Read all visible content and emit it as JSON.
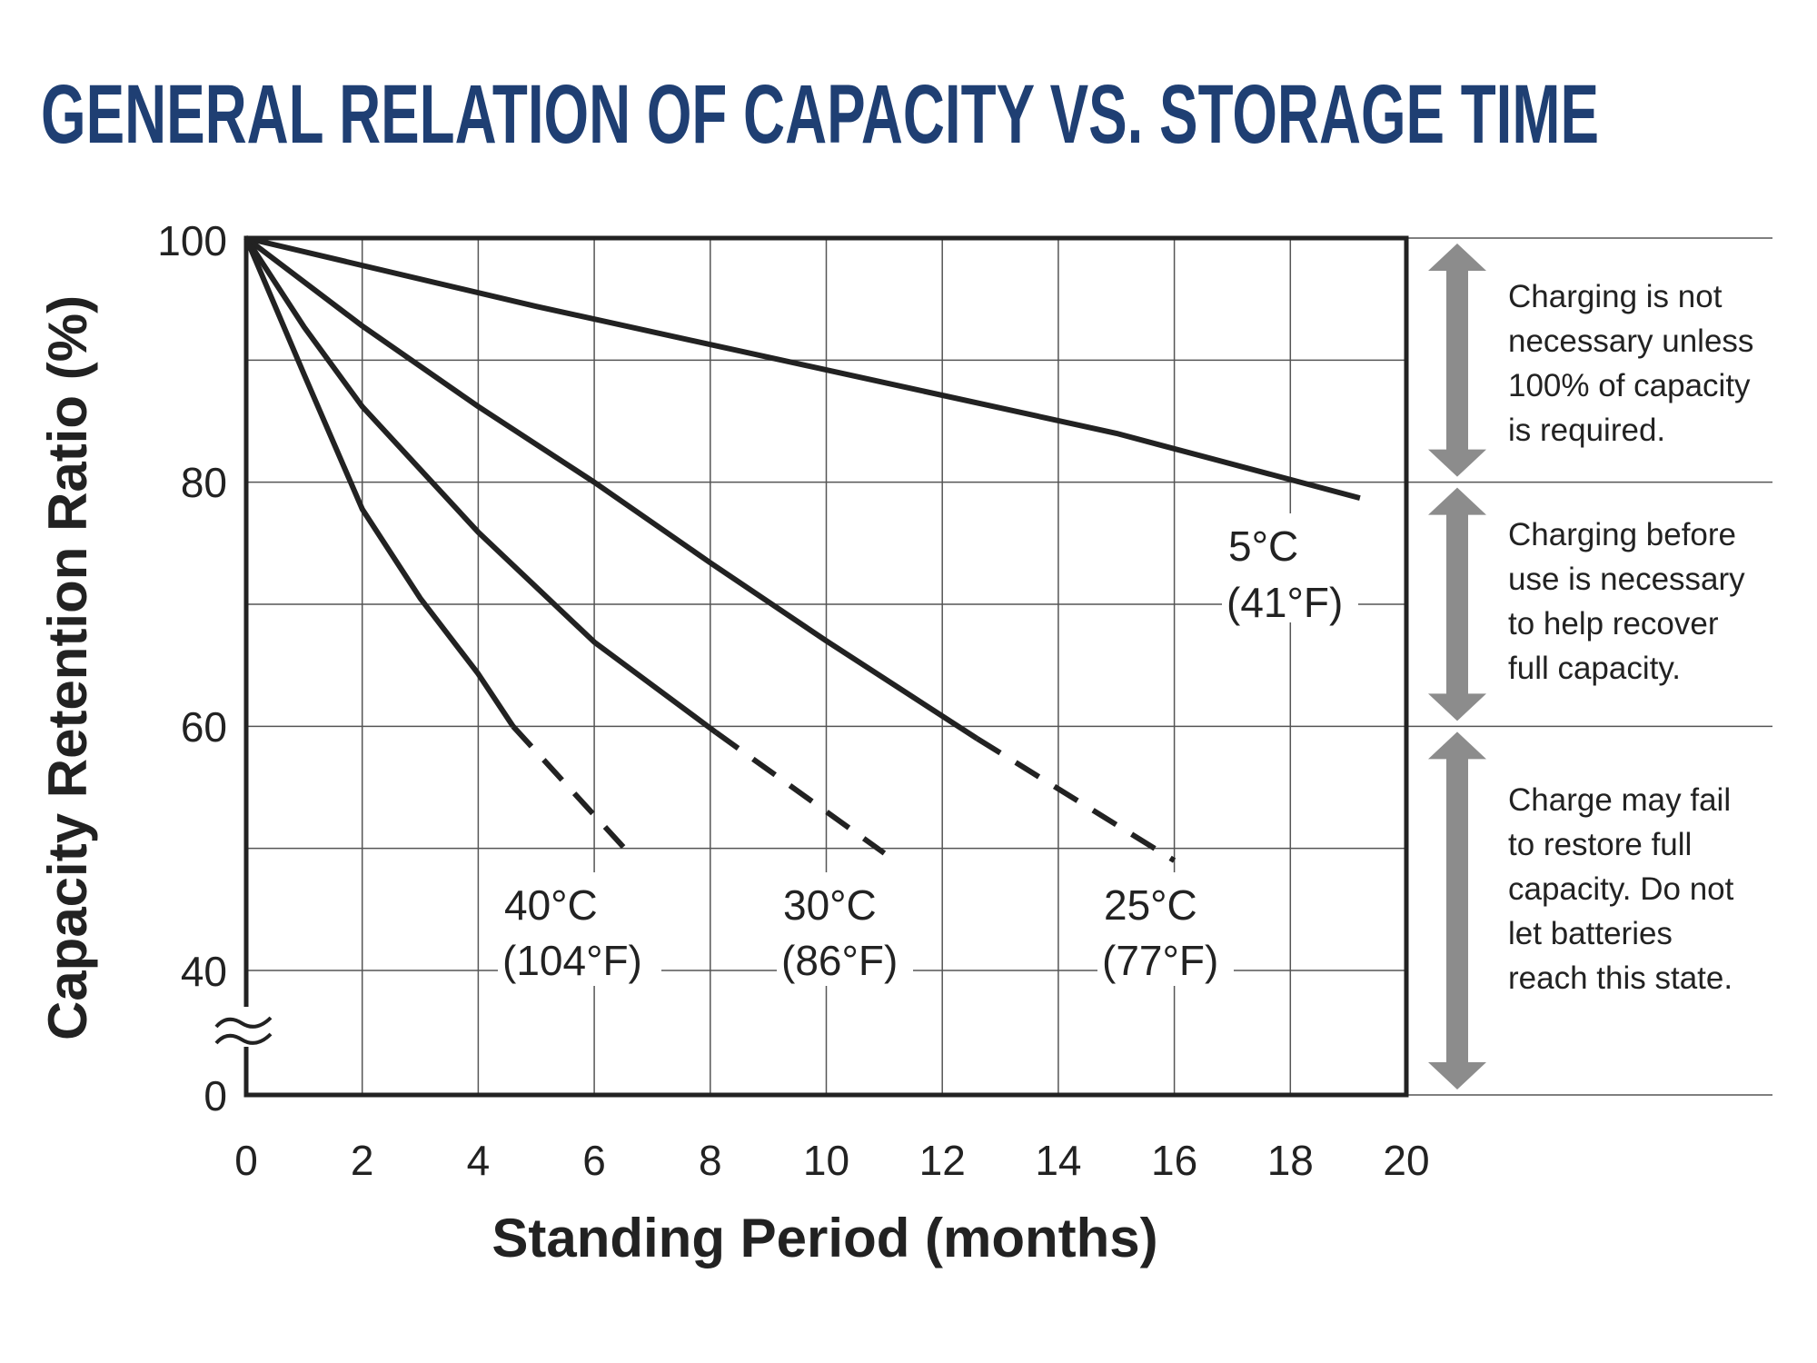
{
  "chart_data": {
    "type": "line",
    "title": "GENERAL RELATION OF CAPACITY VS. STORAGE TIME",
    "xlabel": "Standing Period (months)",
    "ylabel": "Capacity Retention Ratio (%)",
    "xlim": [
      0,
      20
    ],
    "ylim": [
      0,
      100
    ],
    "y_axis_break": "between 0 and 40",
    "grid": true,
    "x_ticks": [
      "0",
      "2",
      "4",
      "6",
      "8",
      "10",
      "12",
      "14",
      "16",
      "18",
      "20"
    ],
    "y_ticks": [
      "100",
      "80",
      "60",
      "40",
      "0"
    ],
    "series": [
      {
        "name": "5°C",
        "name_f": "(41°F)",
        "solid": [
          [
            0,
            100
          ],
          [
            5,
            94.4
          ],
          [
            10,
            89.2
          ],
          [
            15,
            84
          ],
          [
            19.2,
            78.7
          ]
        ],
        "dashed": []
      },
      {
        "name": "25°C",
        "name_f": "(77°F)",
        "solid": [
          [
            0,
            100
          ],
          [
            2,
            92.8
          ],
          [
            4,
            86.2
          ],
          [
            6,
            80
          ],
          [
            8,
            73.4
          ],
          [
            10,
            67
          ],
          [
            12.6,
            59
          ]
        ],
        "dashed": [
          [
            12.6,
            59
          ],
          [
            16,
            49
          ]
        ]
      },
      {
        "name": "30°C",
        "name_f": "(86°F)",
        "solid": [
          [
            0,
            100
          ],
          [
            1,
            92.7
          ],
          [
            2,
            86.2
          ],
          [
            4,
            75.9
          ],
          [
            6,
            66.9
          ],
          [
            8.1,
            59.5
          ]
        ],
        "dashed": [
          [
            8.1,
            59.5
          ],
          [
            11,
            49.6
          ]
        ]
      },
      {
        "name": "40°C",
        "name_f": "(104°F)",
        "solid": [
          [
            0,
            100
          ],
          [
            1,
            88.8
          ],
          [
            2,
            77.8
          ],
          [
            3,
            70.5
          ],
          [
            4,
            64.3
          ],
          [
            4.6,
            60
          ]
        ],
        "dashed": [
          [
            4.6,
            60
          ],
          [
            6.6,
            49.6
          ]
        ]
      }
    ],
    "colors": {
      "title": "#1f3f73",
      "curves": "#222222",
      "arrows": "#8c8c8c",
      "grid": "#555555"
    },
    "zones": [
      {
        "range": [
          80,
          100
        ],
        "lines": [
          "Charging is not",
          "necessary unless",
          "100% of capacity",
          "is required."
        ]
      },
      {
        "range": [
          60,
          80
        ],
        "lines": [
          "Charging before",
          "use is necessary",
          "to help recover",
          "full capacity."
        ]
      },
      {
        "range": [
          0,
          60
        ],
        "lines": [
          "Charge may fail",
          "to restore full",
          "capacity. Do not",
          "let batteries",
          "reach this state."
        ]
      }
    ]
  }
}
